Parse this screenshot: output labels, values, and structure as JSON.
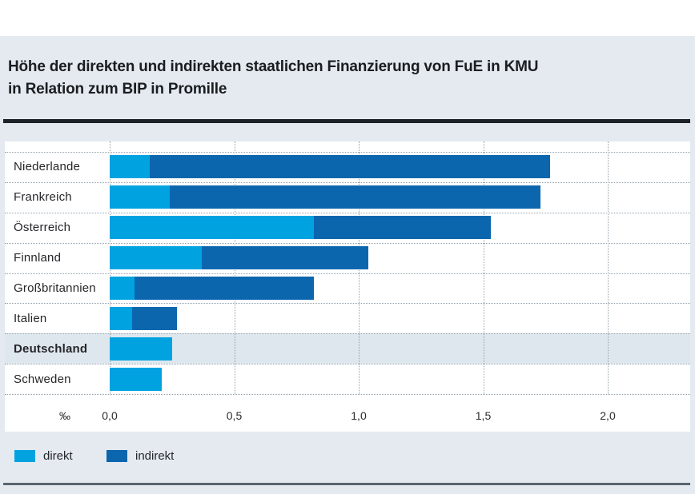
{
  "title": {
    "line1": "Höhe der direkten und indirekten staatlichen Finanzierung von FuE in KMU",
    "line2": "in Relation zum BIP in Promille"
  },
  "chart_data": {
    "type": "bar",
    "orientation": "horizontal",
    "stacked": true,
    "title": "Höhe der direkten und indirekten staatlichen Finanzierung von FuE in KMU in Relation zum BIP in Promille",
    "unit_label": "‰",
    "categories": [
      "Niederlande",
      "Frankreich",
      "Österreich",
      "Finnland",
      "Großbritannien",
      "Italien",
      "Deutschland",
      "Schweden"
    ],
    "series": [
      {
        "name": "direkt",
        "color": "#00A3E0",
        "values": [
          0.16,
          0.24,
          0.82,
          0.37,
          0.1,
          0.09,
          0.25,
          0.21
        ]
      },
      {
        "name": "indirekt",
        "color": "#0C66AE",
        "values": [
          1.61,
          1.49,
          0.71,
          0.67,
          0.72,
          0.18,
          0.0,
          0.0
        ]
      }
    ],
    "totals": [
      1.77,
      1.73,
      1.53,
      1.04,
      0.82,
      0.27,
      0.25,
      0.21
    ],
    "highlighted_category": "Deutschland",
    "highlight_color": "#DEE7EE",
    "x_ticks": [
      "0,0",
      "0,5",
      "1,0",
      "1,5",
      "2,0"
    ],
    "x_tick_values": [
      0,
      0.5,
      1.0,
      1.5,
      2.0
    ],
    "xlim": [
      0,
      2.32
    ],
    "grid": "dotted vertical gridlines at ticks, dotted horizontal row separators",
    "legend_position": "bottom-left"
  },
  "legend": {
    "items": [
      {
        "label": "direkt",
        "color": "#00A3E0"
      },
      {
        "label": "indirekt",
        "color": "#0C66AE"
      }
    ]
  }
}
